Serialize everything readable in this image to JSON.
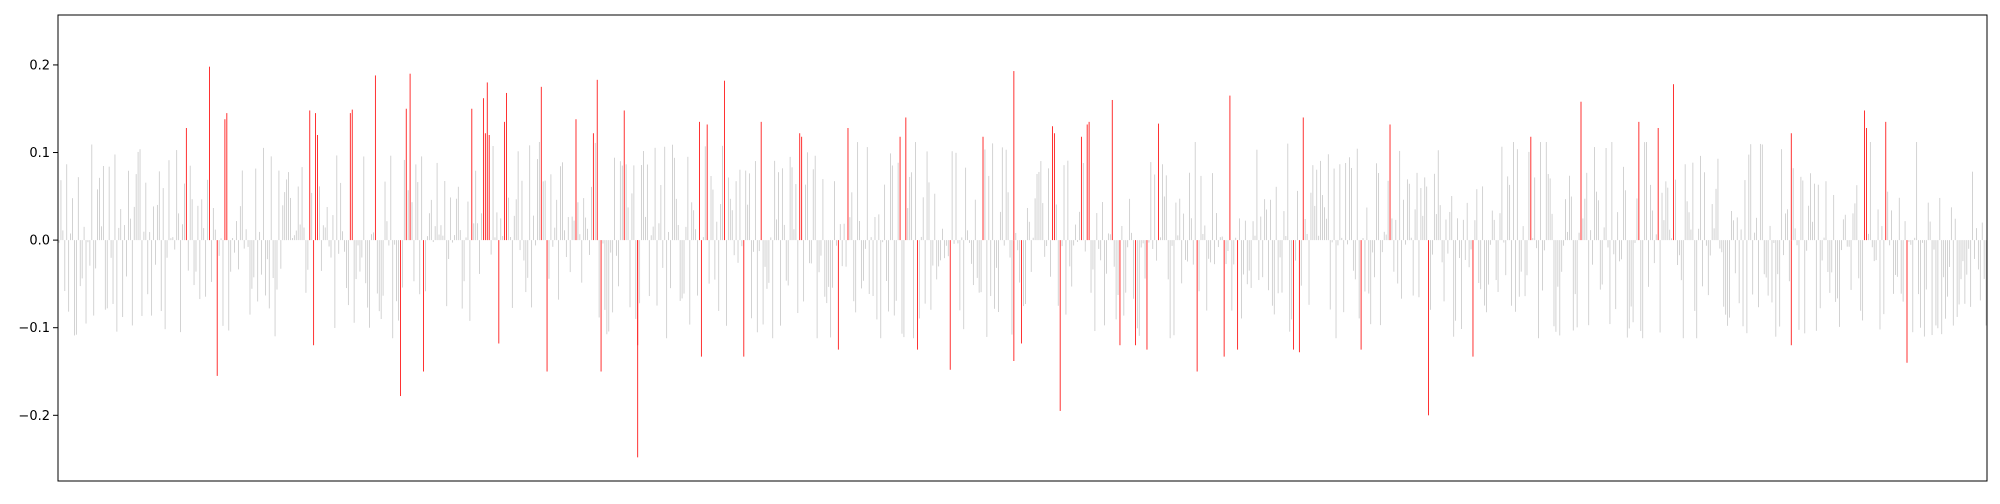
{
  "chart_data": {
    "type": "bar",
    "title": "",
    "xlabel": "",
    "ylabel": "",
    "ylim": [
      -0.275,
      0.257
    ],
    "grid": false,
    "legend": false,
    "xticks_visible": false,
    "yticks": [
      {
        "value": 0.2,
        "label": "0.2"
      },
      {
        "value": 0.1,
        "label": "0.1"
      },
      {
        "value": 0.0,
        "label": "0.0"
      },
      {
        "value": -0.1,
        "label": "−0.1"
      },
      {
        "value": -0.2,
        "label": "−0.2"
      }
    ],
    "bar_count": 1000,
    "highlight_threshold": 0.115,
    "colors": {
      "normal": "#c8c8c8",
      "highlight": "#ff0000",
      "axes": "#000000"
    },
    "highlighted": [
      {
        "i": 66,
        "v": 0.128
      },
      {
        "i": 78,
        "v": 0.198
      },
      {
        "i": 82,
        "v": -0.155
      },
      {
        "i": 86,
        "v": 0.138
      },
      {
        "i": 87,
        "v": 0.145
      },
      {
        "i": 130,
        "v": 0.148
      },
      {
        "i": 132,
        "v": -0.12
      },
      {
        "i": 133,
        "v": 0.145
      },
      {
        "i": 134,
        "v": 0.12
      },
      {
        "i": 151,
        "v": 0.145
      },
      {
        "i": 152,
        "v": 0.149
      },
      {
        "i": 164,
        "v": 0.188
      },
      {
        "i": 177,
        "v": -0.178
      },
      {
        "i": 180,
        "v": 0.15
      },
      {
        "i": 182,
        "v": 0.19
      },
      {
        "i": 189,
        "v": -0.15
      },
      {
        "i": 214,
        "v": 0.15
      },
      {
        "i": 220,
        "v": 0.162
      },
      {
        "i": 221,
        "v": 0.122
      },
      {
        "i": 222,
        "v": 0.18
      },
      {
        "i": 223,
        "v": 0.12
      },
      {
        "i": 228,
        "v": -0.118
      },
      {
        "i": 231,
        "v": 0.135
      },
      {
        "i": 232,
        "v": 0.168
      },
      {
        "i": 250,
        "v": 0.175
      },
      {
        "i": 253,
        "v": -0.15
      },
      {
        "i": 268,
        "v": 0.138
      },
      {
        "i": 277,
        "v": 0.122
      },
      {
        "i": 279,
        "v": 0.183
      },
      {
        "i": 281,
        "v": -0.15
      },
      {
        "i": 293,
        "v": 0.148
      },
      {
        "i": 300,
        "v": -0.248
      },
      {
        "i": 300,
        "v": -0.12
      },
      {
        "i": 332,
        "v": 0.135
      },
      {
        "i": 333,
        "v": -0.133
      },
      {
        "i": 336,
        "v": 0.132
      },
      {
        "i": 345,
        "v": 0.182
      },
      {
        "i": 355,
        "v": -0.133
      },
      {
        "i": 364,
        "v": 0.135
      },
      {
        "i": 384,
        "v": 0.122
      },
      {
        "i": 385,
        "v": 0.118
      },
      {
        "i": 404,
        "v": -0.125
      },
      {
        "i": 409,
        "v": 0.128
      },
      {
        "i": 436,
        "v": 0.118
      },
      {
        "i": 439,
        "v": 0.14
      },
      {
        "i": 445,
        "v": -0.125
      },
      {
        "i": 462,
        "v": -0.148
      },
      {
        "i": 479,
        "v": 0.118
      },
      {
        "i": 495,
        "v": 0.193
      },
      {
        "i": 495,
        "v": -0.138
      },
      {
        "i": 499,
        "v": -0.118
      },
      {
        "i": 515,
        "v": 0.13
      },
      {
        "i": 516,
        "v": 0.122
      },
      {
        "i": 519,
        "v": -0.195
      },
      {
        "i": 530,
        "v": 0.118
      },
      {
        "i": 533,
        "v": 0.132
      },
      {
        "i": 534,
        "v": 0.135
      },
      {
        "i": 546,
        "v": 0.16
      },
      {
        "i": 550,
        "v": -0.12
      },
      {
        "i": 558,
        "v": -0.12
      },
      {
        "i": 564,
        "v": -0.125
      },
      {
        "i": 570,
        "v": 0.133
      },
      {
        "i": 590,
        "v": -0.15
      },
      {
        "i": 604,
        "v": -0.133
      },
      {
        "i": 607,
        "v": 0.165
      },
      {
        "i": 611,
        "v": -0.125
      },
      {
        "i": 640,
        "v": -0.125
      },
      {
        "i": 643,
        "v": -0.128
      },
      {
        "i": 645,
        "v": 0.14
      },
      {
        "i": 675,
        "v": -0.125
      },
      {
        "i": 690,
        "v": 0.132
      },
      {
        "i": 710,
        "v": -0.2
      },
      {
        "i": 733,
        "v": -0.133
      },
      {
        "i": 763,
        "v": 0.118
      },
      {
        "i": 789,
        "v": 0.158
      },
      {
        "i": 819,
        "v": 0.135
      },
      {
        "i": 829,
        "v": 0.128
      },
      {
        "i": 837,
        "v": 0.178
      },
      {
        "i": 898,
        "v": 0.122
      },
      {
        "i": 898,
        "v": -0.12
      },
      {
        "i": 936,
        "v": 0.148
      },
      {
        "i": 937,
        "v": 0.128
      },
      {
        "i": 947,
        "v": 0.135
      },
      {
        "i": 958,
        "v": -0.14
      }
    ]
  }
}
